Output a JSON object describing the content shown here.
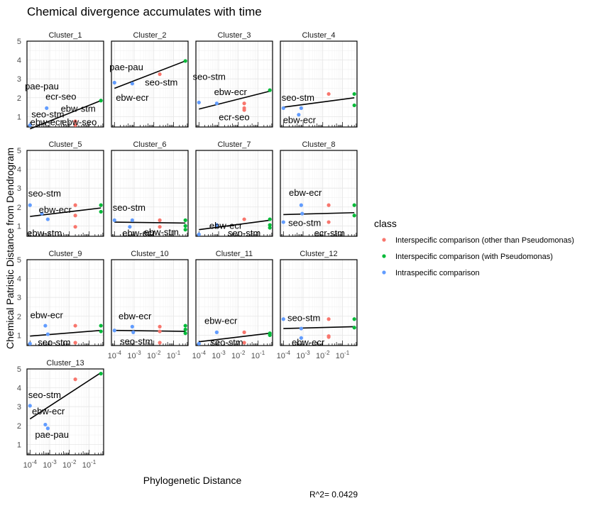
{
  "chart_data": {
    "type": "scatter",
    "title": "Chemical divergence accumulates with time",
    "xlabel": "Phylogenetic Distance",
    "ylabel": "Chemical Patristic Distance from Dendrogram",
    "xscale": "log10",
    "xlim": [
      7e-05,
      0.55
    ],
    "ylim": [
      0.45,
      5
    ],
    "x_ticks": [
      0.0001,
      0.001,
      0.01,
      0.1
    ],
    "x_tick_labels": [
      "10^-4",
      "10^-3",
      "10^-2",
      "10^-1"
    ],
    "y_ticks": [
      1,
      2,
      3,
      4,
      5
    ],
    "y_tick_labels": [
      "1",
      "2",
      "3",
      "4",
      "5"
    ],
    "grid": true,
    "legend": {
      "title": "class",
      "placement": "right",
      "entries": [
        {
          "label": "Interspecific comparison (other than Pseudomonas)",
          "color": "#F8766D"
        },
        {
          "label": "Interspecific comparison (with Pseudomonas)",
          "color": "#00BA38"
        },
        {
          "label": "Intraspecific comparison",
          "color": "#619CFF"
        }
      ]
    },
    "annotation": "R^2= 0.0429",
    "panels": [
      {
        "name": "Cluster_1",
        "fit": [
          [
            0.0001,
            0.35
          ],
          [
            0.4,
            1.85
          ]
        ],
        "points": [
          {
            "x": 0.0001,
            "y": 0.55,
            "class": 2
          },
          {
            "x": 0.0007,
            "y": 1.45,
            "class": 2
          },
          {
            "x": 0.02,
            "y": 0.75,
            "class": 0
          },
          {
            "x": 0.02,
            "y": 0.55,
            "class": 0
          },
          {
            "x": 0.4,
            "y": 1.85,
            "class": 1
          }
        ],
        "labels": [
          {
            "text": "pae-pau",
            "x": 0.0004,
            "y": 2.45
          },
          {
            "text": "ecr-seo",
            "x": 0.0037,
            "y": 1.9
          },
          {
            "text": "ebw-stm",
            "x": 0.028,
            "y": 1.25
          },
          {
            "text": "seo-stm",
            "x": 0.0008,
            "y": 0.95
          },
          {
            "text": "ebw-ecr",
            "x": 0.0007,
            "y": 0.55
          },
          {
            "text": "ebw-seo",
            "x": 0.032,
            "y": 0.55
          }
        ]
      },
      {
        "name": "Cluster_2",
        "fit": [
          [
            0.0001,
            2.5
          ],
          [
            0.4,
            3.95
          ]
        ],
        "points": [
          {
            "x": 0.0001,
            "y": 2.8,
            "class": 2
          },
          {
            "x": 0.0008,
            "y": 2.75,
            "class": 2
          },
          {
            "x": 0.02,
            "y": 3.25,
            "class": 0
          },
          {
            "x": 0.4,
            "y": 3.95,
            "class": 1
          }
        ],
        "labels": [
          {
            "text": "pae-pau",
            "x": 0.0004,
            "y": 3.45
          },
          {
            "text": "seo-stm",
            "x": 0.024,
            "y": 2.65
          },
          {
            "text": "ebw-ecr",
            "x": 0.0008,
            "y": 1.85
          }
        ]
      },
      {
        "name": "Cluster_3",
        "fit": [
          [
            0.0001,
            1.4
          ],
          [
            0.4,
            2.35
          ]
        ],
        "points": [
          {
            "x": 0.0001,
            "y": 1.75,
            "class": 2
          },
          {
            "x": 0.0008,
            "y": 1.7,
            "class": 2
          },
          {
            "x": 0.02,
            "y": 1.7,
            "class": 0
          },
          {
            "x": 0.02,
            "y": 1.45,
            "class": 0
          },
          {
            "x": 0.02,
            "y": 1.35,
            "class": 0
          },
          {
            "x": 0.4,
            "y": 2.4,
            "class": 1
          }
        ],
        "labels": [
          {
            "text": "seo-stm",
            "x": 0.00033,
            "y": 2.95
          },
          {
            "text": "ebw-ecr",
            "x": 0.004,
            "y": 2.15
          },
          {
            "text": "ecr-seo",
            "x": 0.0062,
            "y": 0.8
          }
        ]
      },
      {
        "name": "Cluster_4",
        "fit": [
          [
            0.0001,
            1.5
          ],
          [
            0.4,
            2.0
          ]
        ],
        "points": [
          {
            "x": 0.0001,
            "y": 1.45,
            "class": 2
          },
          {
            "x": 0.0008,
            "y": 1.45,
            "class": 2
          },
          {
            "x": 0.0006,
            "y": 1.1,
            "class": 2
          },
          {
            "x": 0.02,
            "y": 2.2,
            "class": 0
          },
          {
            "x": 0.4,
            "y": 2.2,
            "class": 1
          },
          {
            "x": 0.4,
            "y": 1.6,
            "class": 1
          }
        ],
        "labels": [
          {
            "text": "seo-stm",
            "x": 0.00055,
            "y": 1.85
          },
          {
            "text": "ebw-ecr",
            "x": 0.00065,
            "y": 0.65
          }
        ]
      },
      {
        "name": "Cluster_5",
        "fit": [
          [
            0.0001,
            1.5
          ],
          [
            0.4,
            1.95
          ]
        ],
        "points": [
          {
            "x": 0.0001,
            "y": 2.1,
            "class": 2
          },
          {
            "x": 0.0008,
            "y": 1.35,
            "class": 2
          },
          {
            "x": 0.0004,
            "y": 1.65,
            "class": 2
          },
          {
            "x": 0.02,
            "y": 2.1,
            "class": 0
          },
          {
            "x": 0.02,
            "y": 1.55,
            "class": 0
          },
          {
            "x": 0.02,
            "y": 0.95,
            "class": 0
          },
          {
            "x": 0.4,
            "y": 2.1,
            "class": 1
          },
          {
            "x": 0.4,
            "y": 1.75,
            "class": 1
          }
        ],
        "labels": [
          {
            "text": "seo-stm",
            "x": 0.00055,
            "y": 2.55
          },
          {
            "text": "ebw-ecr",
            "x": 0.0019,
            "y": 1.7
          },
          {
            "text": "ebw-stm",
            "x": 0.00055,
            "y": 0.45
          }
        ]
      },
      {
        "name": "Cluster_6",
        "fit": [
          [
            0.0001,
            1.2
          ],
          [
            0.4,
            1.15
          ]
        ],
        "points": [
          {
            "x": 0.0001,
            "y": 1.3,
            "class": 2
          },
          {
            "x": 0.0008,
            "y": 1.3,
            "class": 2
          },
          {
            "x": 0.0006,
            "y": 0.95,
            "class": 2
          },
          {
            "x": 0.02,
            "y": 1.3,
            "class": 0
          },
          {
            "x": 0.02,
            "y": 0.95,
            "class": 0
          },
          {
            "x": 0.4,
            "y": 1.3,
            "class": 1
          },
          {
            "x": 0.4,
            "y": 1.0,
            "class": 1
          },
          {
            "x": 0.4,
            "y": 0.8,
            "class": 1
          }
        ],
        "labels": [
          {
            "text": "seo-stm",
            "x": 0.00055,
            "y": 1.8
          },
          {
            "text": "ebw-ecr",
            "x": 0.0017,
            "y": 0.45
          },
          {
            "text": "ebw-stm",
            "x": 0.024,
            "y": 0.5
          }
        ]
      },
      {
        "name": "Cluster_7",
        "fit": [
          [
            0.0001,
            0.8
          ],
          [
            0.4,
            1.3
          ]
        ],
        "points": [
          {
            "x": 0.0001,
            "y": 0.55,
            "class": 2
          },
          {
            "x": 0.0008,
            "y": 1.05,
            "class": 2
          },
          {
            "x": 0.02,
            "y": 1.35,
            "class": 0
          },
          {
            "x": 0.4,
            "y": 1.35,
            "class": 1
          },
          {
            "x": 0.4,
            "y": 1.05,
            "class": 1
          },
          {
            "x": 0.4,
            "y": 0.9,
            "class": 1
          }
        ],
        "labels": [
          {
            "text": "ebw-ecr",
            "x": 0.0023,
            "y": 0.85
          },
          {
            "text": "seo-stm",
            "x": 0.02,
            "y": 0.45
          }
        ]
      },
      {
        "name": "Cluster_8",
        "fit": [
          [
            0.0001,
            1.6
          ],
          [
            0.4,
            1.7
          ]
        ],
        "points": [
          {
            "x": 0.0001,
            "y": 1.2,
            "class": 2
          },
          {
            "x": 0.0008,
            "y": 2.1,
            "class": 2
          },
          {
            "x": 0.0009,
            "y": 1.65,
            "class": 2
          },
          {
            "x": 0.02,
            "y": 2.1,
            "class": 0
          },
          {
            "x": 0.02,
            "y": 1.2,
            "class": 0
          },
          {
            "x": 0.4,
            "y": 2.1,
            "class": 1
          },
          {
            "x": 0.4,
            "y": 1.55,
            "class": 1
          }
        ],
        "labels": [
          {
            "text": "ebw-ecr",
            "x": 0.0013,
            "y": 2.6
          },
          {
            "text": "seo-stm",
            "x": 0.0012,
            "y": 1.0
          },
          {
            "text": "ecr-stm",
            "x": 0.022,
            "y": 0.45
          }
        ]
      },
      {
        "name": "Cluster_9",
        "fit": [
          [
            0.0001,
            0.95
          ],
          [
            0.4,
            1.25
          ]
        ],
        "points": [
          {
            "x": 0.0001,
            "y": 0.55,
            "class": 2
          },
          {
            "x": 0.0008,
            "y": 1.05,
            "class": 2
          },
          {
            "x": 0.0006,
            "y": 1.5,
            "class": 2
          },
          {
            "x": 0.02,
            "y": 1.5,
            "class": 0
          },
          {
            "x": 0.02,
            "y": 0.6,
            "class": 0
          },
          {
            "x": 0.4,
            "y": 1.5,
            "class": 1
          },
          {
            "x": 0.4,
            "y": 1.2,
            "class": 1
          }
        ],
        "labels": [
          {
            "text": "ebw-ecr",
            "x": 0.0007,
            "y": 1.9
          },
          {
            "text": "seo-stm",
            "x": 0.0017,
            "y": 0.45
          }
        ]
      },
      {
        "name": "Cluster_10",
        "fit": [
          [
            0.0001,
            1.25
          ],
          [
            0.4,
            1.2
          ]
        ],
        "points": [
          {
            "x": 0.0001,
            "y": 1.25,
            "class": 2
          },
          {
            "x": 0.0008,
            "y": 1.45,
            "class": 2
          },
          {
            "x": 0.0009,
            "y": 1.15,
            "class": 2
          },
          {
            "x": 0.02,
            "y": 1.45,
            "class": 0
          },
          {
            "x": 0.02,
            "y": 1.2,
            "class": 0
          },
          {
            "x": 0.02,
            "y": 0.6,
            "class": 0
          },
          {
            "x": 0.4,
            "y": 1.5,
            "class": 1
          },
          {
            "x": 0.4,
            "y": 1.3,
            "class": 1
          },
          {
            "x": 0.4,
            "y": 1.1,
            "class": 1
          }
        ],
        "labels": [
          {
            "text": "ebw-ecr",
            "x": 0.0011,
            "y": 1.85
          },
          {
            "text": "seo-stm",
            "x": 0.0013,
            "y": 0.5
          }
        ]
      },
      {
        "name": "Cluster_11",
        "fit": [
          [
            0.0001,
            0.65
          ],
          [
            0.4,
            1.1
          ]
        ],
        "points": [
          {
            "x": 0.0001,
            "y": 0.55,
            "class": 2
          },
          {
            "x": 0.0008,
            "y": 1.15,
            "class": 2
          },
          {
            "x": 0.02,
            "y": 1.15,
            "class": 0
          },
          {
            "x": 0.02,
            "y": 0.6,
            "class": 0
          },
          {
            "x": 0.4,
            "y": 1.1,
            "class": 1
          },
          {
            "x": 0.4,
            "y": 1.0,
            "class": 1
          }
        ],
        "labels": [
          {
            "text": "ebw-ecr",
            "x": 0.0013,
            "y": 1.6
          },
          {
            "text": "seo-stm",
            "x": 0.0026,
            "y": 0.45
          }
        ]
      },
      {
        "name": "Cluster_12",
        "fit": [
          [
            0.0001,
            1.35
          ],
          [
            0.4,
            1.45
          ]
        ],
        "points": [
          {
            "x": 0.0001,
            "y": 1.85,
            "class": 2
          },
          {
            "x": 0.0008,
            "y": 1.35,
            "class": 2
          },
          {
            "x": 0.0008,
            "y": 0.85,
            "class": 2
          },
          {
            "x": 0.02,
            "y": 1.85,
            "class": 0
          },
          {
            "x": 0.02,
            "y": 0.95,
            "class": 0
          },
          {
            "x": 0.02,
            "y": 0.9,
            "class": 0
          },
          {
            "x": 0.4,
            "y": 1.85,
            "class": 1
          },
          {
            "x": 0.4,
            "y": 1.4,
            "class": 1
          }
        ],
        "labels": [
          {
            "text": "seo-stm",
            "x": 0.0011,
            "y": 1.75
          },
          {
            "text": "ebw-ecr",
            "x": 0.0018,
            "y": 0.45
          }
        ]
      },
      {
        "name": "Cluster_13",
        "fit": [
          [
            0.0001,
            2.35
          ],
          [
            0.4,
            4.8
          ]
        ],
        "points": [
          {
            "x": 0.0001,
            "y": 3.05,
            "class": 2
          },
          {
            "x": 0.0006,
            "y": 2.05,
            "class": 2
          },
          {
            "x": 0.0008,
            "y": 1.85,
            "class": 2
          },
          {
            "x": 0.02,
            "y": 4.45,
            "class": 0
          },
          {
            "x": 0.4,
            "y": 4.75,
            "class": 1
          }
        ],
        "labels": [
          {
            "text": "seo-stm",
            "x": 0.00055,
            "y": 3.45
          },
          {
            "text": "ebw-ecr",
            "x": 0.00085,
            "y": 2.6
          },
          {
            "text": "pae-pau",
            "x": 0.0013,
            "y": 1.35
          }
        ]
      }
    ]
  }
}
